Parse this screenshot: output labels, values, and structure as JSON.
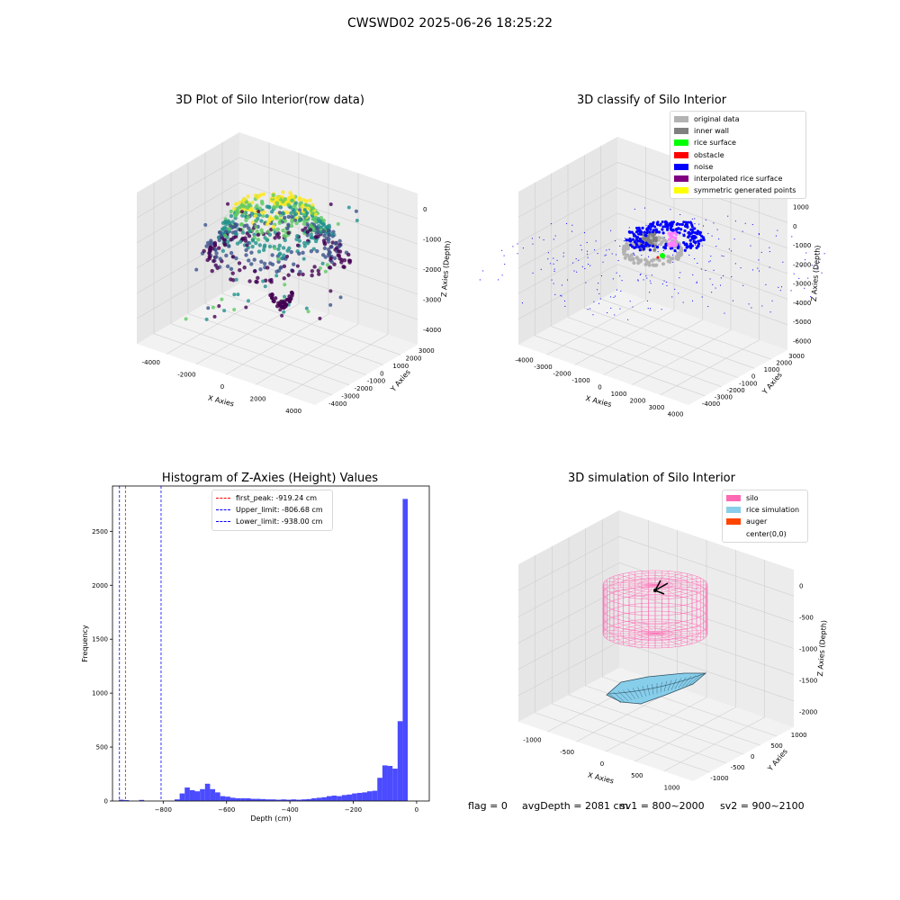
{
  "figure": {
    "suptitle": "CWSWD02 2025-06-26 18:25:22"
  },
  "chart_data": [
    {
      "type": "scatter",
      "title": "3D Plot of Silo Interior(row data)",
      "xlabel": "X Axies",
      "ylabel": "Y Axies",
      "zlabel": "Z Axies (Depth)",
      "x_ticks": [
        "-4000",
        "-2000",
        "0",
        "2000",
        "4000"
      ],
      "y_ticks": [
        "-4000",
        "-3000",
        "-2000",
        "-1000",
        "0",
        "1000",
        "2000",
        "3000"
      ],
      "z_ticks": [
        "0",
        "-1000",
        "-2000",
        "-3000",
        "-4000"
      ],
      "grid": true,
      "colormap": [
        "#440154",
        "#3b528b",
        "#21918c",
        "#5ec962",
        "#fde725"
      ]
    },
    {
      "type": "scatter",
      "title": "3D classify of Silo Interior",
      "xlabel": "X Axies",
      "ylabel": "Y Axies",
      "zlabel": "Z Axies (Depth)",
      "x_ticks": [
        "-4000",
        "-3000",
        "-2000",
        "-1000",
        "0",
        "1000",
        "2000",
        "3000",
        "4000"
      ],
      "y_ticks": [
        "-4000",
        "-3000",
        "-2000",
        "-1000",
        "0",
        "1000",
        "2000",
        "3000"
      ],
      "z_ticks": [
        "1000",
        "0",
        "-1000",
        "-2000",
        "-3000",
        "-4000",
        "-5000",
        "-6000"
      ],
      "grid": true,
      "legend_position": "top-right",
      "legend": [
        {
          "label": "original data",
          "color": "#b3b3b3"
        },
        {
          "label": "inner wall",
          "color": "#808080"
        },
        {
          "label": "rice surface",
          "color": "#00ff00"
        },
        {
          "label": "obstacle",
          "color": "#ff0000"
        },
        {
          "label": "noise",
          "color": "#0000ff"
        },
        {
          "label": "interpolated rice surface",
          "color": "#800080"
        },
        {
          "label": "symmetric generated points",
          "color": "#ffff00"
        }
      ]
    },
    {
      "type": "bar",
      "title": "Histogram of Z-Axies (Height) Values",
      "xlabel": "Depth (cm)",
      "ylabel": "Frequency",
      "xlim": [
        -960,
        40
      ],
      "ylim": [
        0,
        2920
      ],
      "x_ticks": [
        -800,
        -600,
        -400,
        -200,
        0
      ],
      "y_ticks": [
        0,
        500,
        1000,
        1500,
        2000,
        2500
      ],
      "bar_color": "#4b4bff",
      "bin_width": 16,
      "bins": [
        {
          "x": -940,
          "v": 12
        },
        {
          "x": -924,
          "v": 8
        },
        {
          "x": -876,
          "v": 10
        },
        {
          "x": -764,
          "v": 15
        },
        {
          "x": -748,
          "v": 70
        },
        {
          "x": -732,
          "v": 125
        },
        {
          "x": -716,
          "v": 100
        },
        {
          "x": -700,
          "v": 90
        },
        {
          "x": -684,
          "v": 110
        },
        {
          "x": -668,
          "v": 160
        },
        {
          "x": -652,
          "v": 110
        },
        {
          "x": -636,
          "v": 80
        },
        {
          "x": -620,
          "v": 45
        },
        {
          "x": -604,
          "v": 40
        },
        {
          "x": -588,
          "v": 30
        },
        {
          "x": -572,
          "v": 25
        },
        {
          "x": -556,
          "v": 25
        },
        {
          "x": -540,
          "v": 25
        },
        {
          "x": -524,
          "v": 20
        },
        {
          "x": -508,
          "v": 20
        },
        {
          "x": -492,
          "v": 18
        },
        {
          "x": -476,
          "v": 15
        },
        {
          "x": -460,
          "v": 15
        },
        {
          "x": -444,
          "v": 12
        },
        {
          "x": -428,
          "v": 15
        },
        {
          "x": -412,
          "v": 12
        },
        {
          "x": -396,
          "v": 15
        },
        {
          "x": -380,
          "v": 12
        },
        {
          "x": -364,
          "v": 15
        },
        {
          "x": -348,
          "v": 18
        },
        {
          "x": -332,
          "v": 25
        },
        {
          "x": -316,
          "v": 30
        },
        {
          "x": -300,
          "v": 35
        },
        {
          "x": -284,
          "v": 45
        },
        {
          "x": -268,
          "v": 50
        },
        {
          "x": -252,
          "v": 45
        },
        {
          "x": -236,
          "v": 55
        },
        {
          "x": -220,
          "v": 60
        },
        {
          "x": -204,
          "v": 70
        },
        {
          "x": -188,
          "v": 75
        },
        {
          "x": -172,
          "v": 80
        },
        {
          "x": -156,
          "v": 90
        },
        {
          "x": -140,
          "v": 95
        },
        {
          "x": -124,
          "v": 215
        },
        {
          "x": -108,
          "v": 330
        },
        {
          "x": -92,
          "v": 325
        },
        {
          "x": -76,
          "v": 300
        },
        {
          "x": -60,
          "v": 740
        },
        {
          "x": -44,
          "v": 2800
        }
      ],
      "vlines": [
        {
          "label": "first_peak: -919.24 cm",
          "x": -919.24,
          "color": "#ff0000"
        },
        {
          "label": "Upper_limit: -806.68 cm",
          "x": -806.68,
          "color": "#0000ff"
        },
        {
          "label": "Lower_limit: -938.00 cm",
          "x": -938.0,
          "color": "#0000ff"
        }
      ],
      "legend_position": "top-center"
    },
    {
      "type": "surface",
      "title": "3D simulation of Silo Interior",
      "xlabel": "X Axies",
      "ylabel": "Y Axies",
      "zlabel": "Z Axies (Depth)",
      "x_ticks": [
        "-1000",
        "-500",
        "0",
        "500",
        "1000"
      ],
      "y_ticks": [
        "-1000",
        "-500",
        "0",
        "500",
        "1000"
      ],
      "z_ticks": [
        "0",
        "-500",
        "-1000",
        "-1500",
        "-2000"
      ],
      "grid": true,
      "legend_position": "top-right",
      "legend": [
        {
          "label": "silo",
          "color": "#ff69b4"
        },
        {
          "label": "rice simulation",
          "color": "#87ceeb"
        },
        {
          "label": "auger",
          "color": "#ff4500"
        },
        {
          "label": "center(0,0)",
          "color": "#ffffff"
        }
      ]
    }
  ],
  "status": {
    "flag": "flag = 0",
    "avg_depth": "avgDepth = 2081 cm",
    "sv1": "sv1 = 800~2000",
    "sv2": "sv2 = 900~2100"
  }
}
